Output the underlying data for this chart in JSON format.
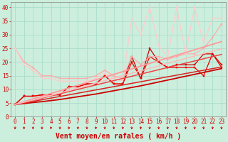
{
  "title": "",
  "xlabel": "Vent moyen/en rafales ( km/h )",
  "ylabel": "",
  "background_color": "#cceedd",
  "grid_color": "#aaddcc",
  "xlim": [
    -0.5,
    23.5
  ],
  "ylim": [
    0,
    42
  ],
  "yticks": [
    0,
    5,
    10,
    15,
    20,
    25,
    30,
    35,
    40
  ],
  "xticks": [
    0,
    1,
    2,
    3,
    4,
    5,
    6,
    7,
    8,
    9,
    10,
    11,
    12,
    13,
    14,
    15,
    16,
    17,
    18,
    19,
    20,
    21,
    22,
    23
  ],
  "lines": [
    {
      "x": [
        0,
        1,
        2,
        3,
        4,
        5,
        6,
        7,
        8,
        9,
        10,
        11,
        12,
        13,
        14,
        15,
        16,
        17,
        18,
        19,
        20,
        21,
        22,
        23
      ],
      "y": [
        4.5,
        7.5,
        7.5,
        8,
        8,
        8,
        11,
        11,
        12,
        12,
        15,
        12,
        12,
        22,
        14,
        25,
        20,
        18,
        19,
        19,
        19,
        23,
        23,
        19
      ],
      "color": "#cc0000",
      "linewidth": 0.9,
      "marker": "s",
      "markersize": 2.0,
      "linestyle": "-"
    },
    {
      "x": [
        0,
        1,
        2,
        3,
        4,
        5,
        6,
        7,
        8,
        9,
        10,
        11,
        12,
        13,
        14,
        15,
        16,
        17,
        18,
        19,
        20,
        21,
        22,
        23
      ],
      "y": [
        4.5,
        7.5,
        7.5,
        8,
        8,
        8,
        11,
        11,
        12,
        12,
        15,
        12,
        12,
        20,
        14,
        22,
        20,
        18,
        18,
        18,
        18,
        15,
        23,
        18
      ],
      "color": "#ee0000",
      "linewidth": 0.9,
      "marker": "s",
      "markersize": 2.0,
      "linestyle": "-"
    },
    {
      "x": [
        0,
        1,
        2,
        3,
        4,
        5,
        6,
        7,
        8,
        9,
        10,
        11,
        12,
        13,
        14,
        15,
        16,
        17,
        18,
        19,
        20,
        21,
        22,
        23
      ],
      "y": [
        25,
        20,
        18,
        15,
        15,
        14,
        14,
        14,
        14,
        15,
        17,
        15,
        14,
        22,
        19,
        22,
        22,
        21,
        22,
        23,
        23,
        25,
        29,
        34
      ],
      "color": "#ffaaaa",
      "linewidth": 0.9,
      "marker": "s",
      "markersize": 2.0,
      "linestyle": "-"
    },
    {
      "x": [
        0,
        1,
        2,
        3,
        4,
        5,
        6,
        7,
        8,
        9,
        10,
        11,
        12,
        13,
        14,
        15,
        16,
        17,
        18,
        19,
        20,
        21,
        22,
        23
      ],
      "y": [
        25,
        19,
        17,
        14,
        14,
        13,
        13,
        13,
        13,
        14,
        16,
        14,
        13,
        36,
        30,
        40,
        26,
        22,
        40,
        23,
        40,
        27,
        36,
        36
      ],
      "color": "#ffcccc",
      "linewidth": 0.9,
      "marker": "s",
      "markersize": 2.0,
      "linestyle": "-"
    },
    {
      "x": [
        0,
        1,
        2,
        3,
        4,
        5,
        6,
        7,
        8,
        9,
        10,
        11,
        12,
        13,
        14,
        15,
        16,
        17,
        18,
        19,
        20,
        21,
        22,
        23
      ],
      "y": [
        4.5,
        4.8,
        5.2,
        5.5,
        5.9,
        6.3,
        6.8,
        7.3,
        7.8,
        8.3,
        8.9,
        9.5,
        10.1,
        10.7,
        11.3,
        12.0,
        12.7,
        13.4,
        14.1,
        14.8,
        15.5,
        16.2,
        16.9,
        17.6
      ],
      "color": "#cc0000",
      "linewidth": 1.3,
      "marker": null,
      "markersize": 0,
      "linestyle": "-"
    },
    {
      "x": [
        0,
        1,
        2,
        3,
        4,
        5,
        6,
        7,
        8,
        9,
        10,
        11,
        12,
        13,
        14,
        15,
        16,
        17,
        18,
        19,
        20,
        21,
        22,
        23
      ],
      "y": [
        4.5,
        5.0,
        5.6,
        6.2,
        6.8,
        7.4,
        8.0,
        8.6,
        9.2,
        9.8,
        10.4,
        11.0,
        11.6,
        12.2,
        12.8,
        13.4,
        14.0,
        14.6,
        15.2,
        15.8,
        16.4,
        17.0,
        17.6,
        18.2
      ],
      "color": "#dd2222",
      "linewidth": 1.1,
      "marker": null,
      "markersize": 0,
      "linestyle": "-"
    },
    {
      "x": [
        0,
        1,
        2,
        3,
        4,
        5,
        6,
        7,
        8,
        9,
        10,
        11,
        12,
        13,
        14,
        15,
        16,
        17,
        18,
        19,
        20,
        21,
        22,
        23
      ],
      "y": [
        4.5,
        5.2,
        6.0,
        6.8,
        7.6,
        8.4,
        9.2,
        10.0,
        10.8,
        11.6,
        12.4,
        13.2,
        14.0,
        14.8,
        15.6,
        16.4,
        17.2,
        18.0,
        18.8,
        19.6,
        20.4,
        21.2,
        22.0,
        22.8
      ],
      "color": "#ee4444",
      "linewidth": 1.1,
      "marker": null,
      "markersize": 0,
      "linestyle": "-"
    },
    {
      "x": [
        0,
        1,
        2,
        3,
        4,
        5,
        6,
        7,
        8,
        9,
        10,
        11,
        12,
        13,
        14,
        15,
        16,
        17,
        18,
        19,
        20,
        21,
        22,
        23
      ],
      "y": [
        4.5,
        5.5,
        6.5,
        7.5,
        8.5,
        9.5,
        10.5,
        11.5,
        12.5,
        13.5,
        14.5,
        15.5,
        16.5,
        17.5,
        18.5,
        19.5,
        20.5,
        21.5,
        22.5,
        23.5,
        24.5,
        25.5,
        26.5,
        27.5
      ],
      "color": "#ff9999",
      "linewidth": 1.3,
      "marker": null,
      "markersize": 0,
      "linestyle": "-"
    },
    {
      "x": [
        0,
        1,
        2,
        3,
        4,
        5,
        6,
        7,
        8,
        9,
        10,
        11,
        12,
        13,
        14,
        15,
        16,
        17,
        18,
        19,
        20,
        21,
        22,
        23
      ],
      "y": [
        4.5,
        5.3,
        6.1,
        7.0,
        7.8,
        8.7,
        9.6,
        10.5,
        11.4,
        12.3,
        13.2,
        14.1,
        15.0,
        15.9,
        16.8,
        17.7,
        18.6,
        19.5,
        20.4,
        21.3,
        22.2,
        23.1,
        24.0,
        24.9
      ],
      "color": "#ffbbbb",
      "linewidth": 1.1,
      "marker": null,
      "markersize": 0,
      "linestyle": "-"
    }
  ],
  "arrow_color": "#cc0000",
  "xlabel_color": "#cc0000",
  "xlabel_fontsize": 7,
  "tick_color": "#cc0000",
  "tick_fontsize": 5.5
}
